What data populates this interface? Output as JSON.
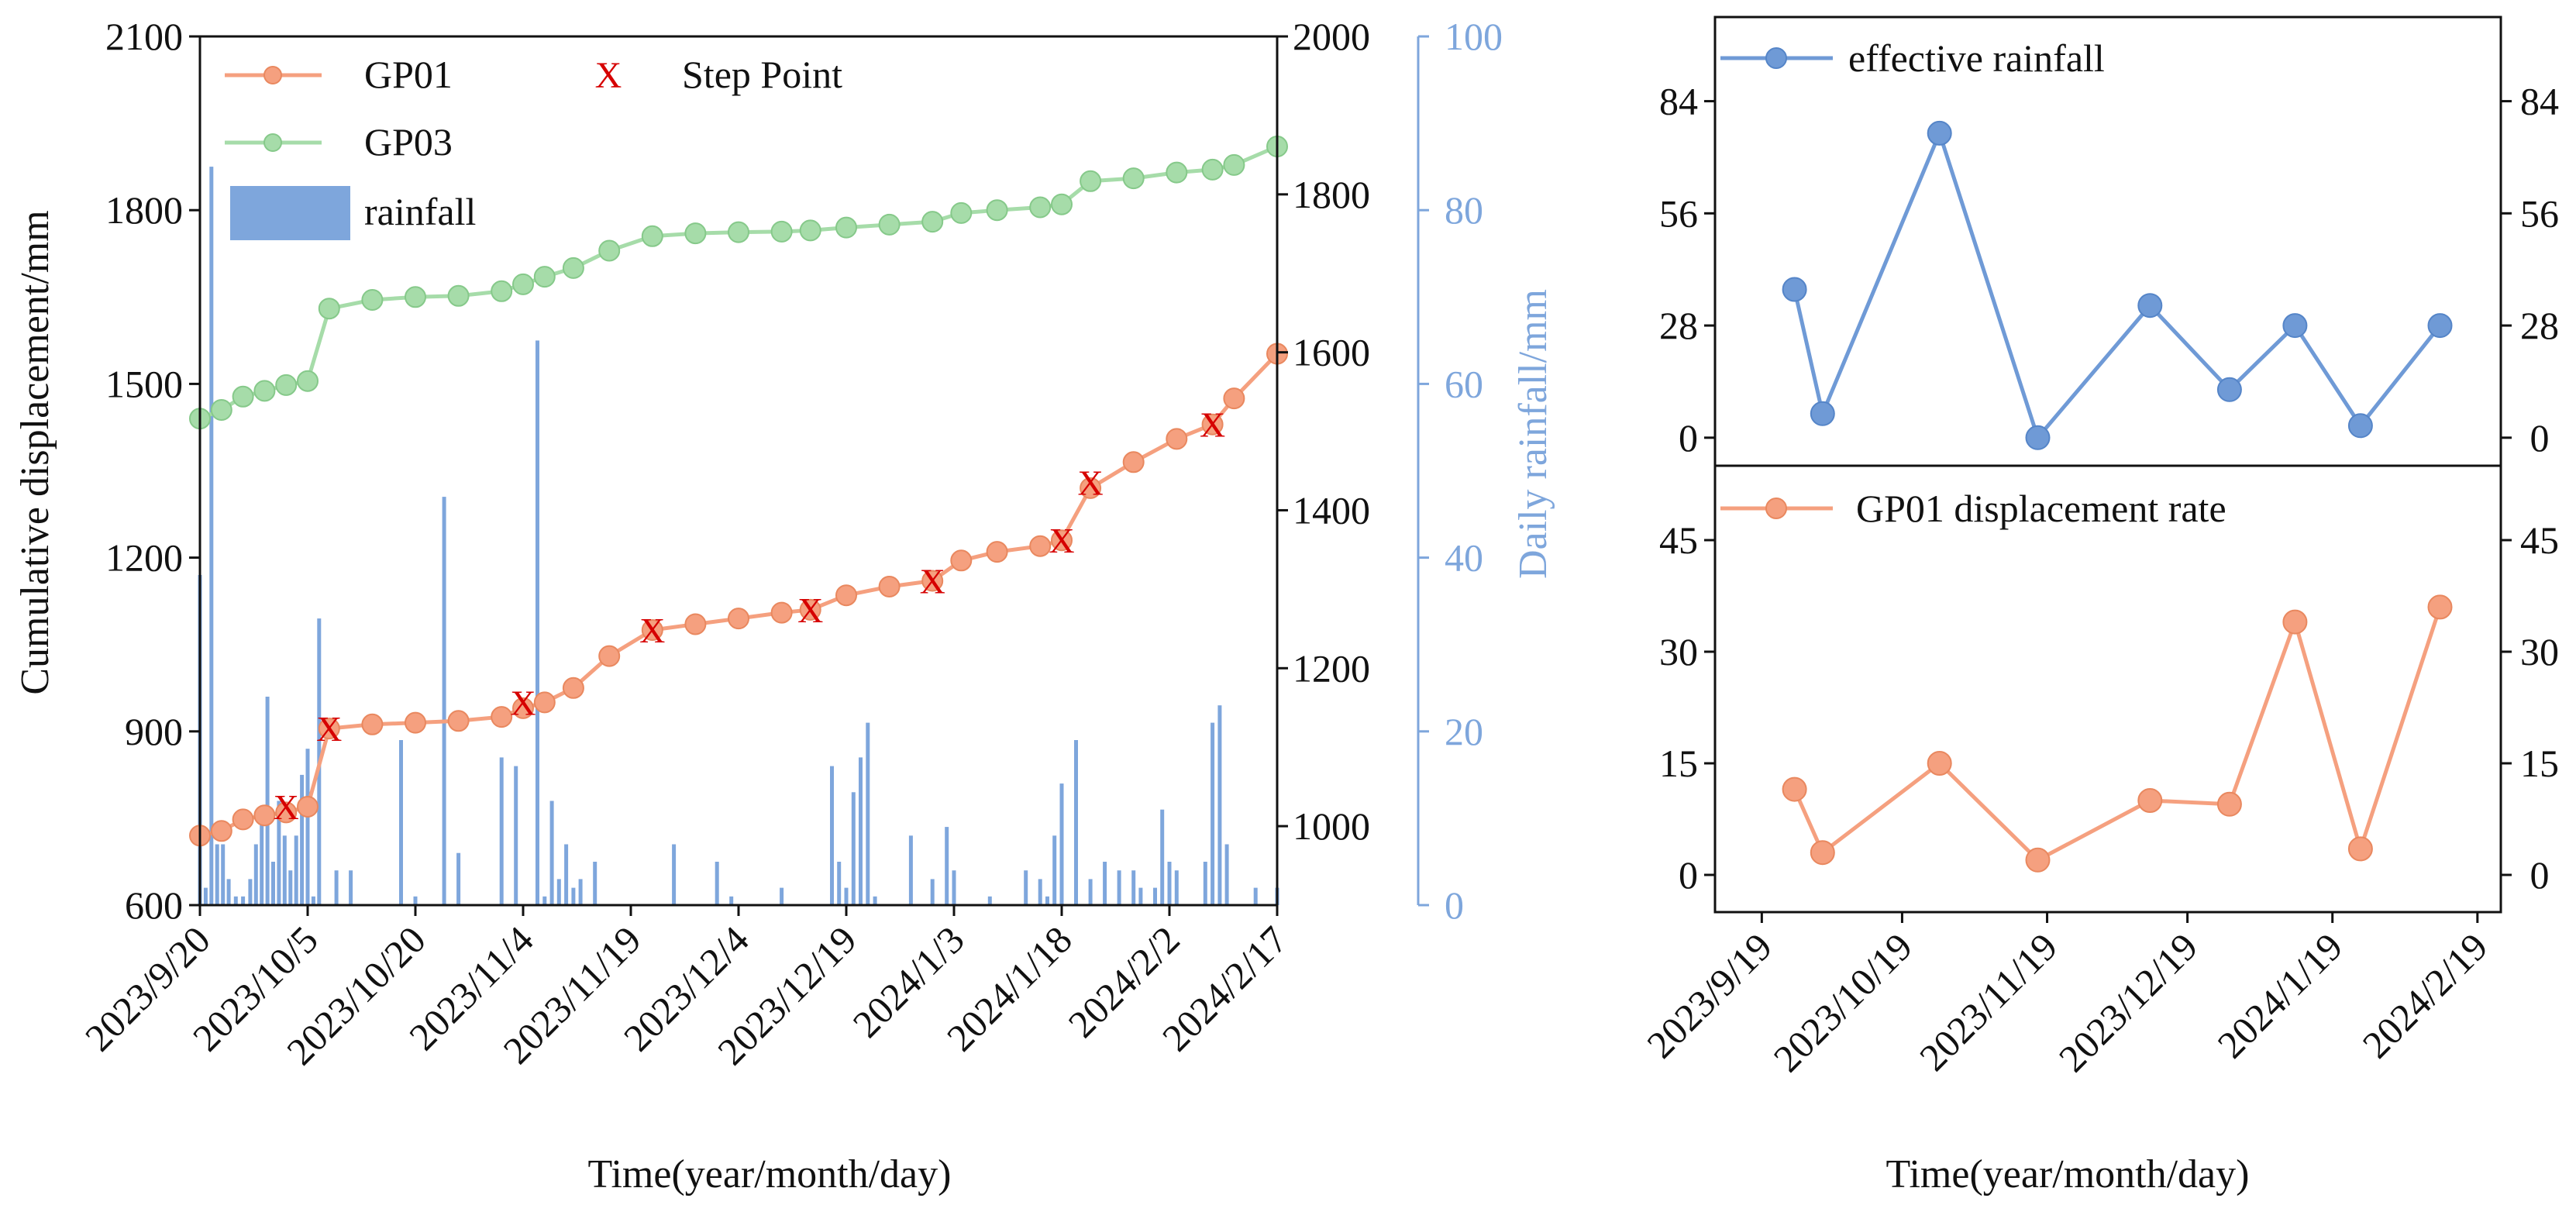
{
  "colors": {
    "gp01": "#f5a07f",
    "gp03": "#a6dca9",
    "rain": "#7ea6dc",
    "rain_axis": "#7ea6dc",
    "rate": "#f5a07f",
    "eff": "#6f9ad6",
    "step": "#d60000"
  },
  "chart_data": [
    {
      "id": "left",
      "type": "line+bar",
      "xlabel": "Time(year/month/day)",
      "ylabel_left": "Cumulative displacement/mm",
      "ylabel_right": "Daily rainfall/mm",
      "x_ticks": [
        "2023/9/20",
        "2023/10/5",
        "2023/10/20",
        "2023/11/4",
        "2023/11/19",
        "2023/12/4",
        "2023/12/19",
        "2024/1/3",
        "2024/1/18",
        "2024/2/2",
        "2024/2/17"
      ],
      "x_range_days": [
        0,
        150
      ],
      "y_left": {
        "lim": [
          600,
          2100
        ],
        "ticks": [
          "600",
          "900",
          "1200",
          "1500",
          "1800",
          "2100"
        ]
      },
      "y_right_disp": {
        "lim": [
          900,
          2000
        ],
        "ticks": [
          "1000",
          "1200",
          "1400",
          "1600",
          "1800",
          "2000"
        ]
      },
      "y_right_rain": {
        "lim": [
          0,
          100
        ],
        "ticks": [
          "0",
          "20",
          "40",
          "60",
          "80",
          "100"
        ]
      },
      "legend": {
        "gp01": "GP01",
        "gp03": "GP03",
        "rainfall": "rainfall",
        "step": "Step Point",
        "step_marker": "X"
      },
      "series": [
        {
          "name": "GP01",
          "x_days": [
            0,
            3,
            6,
            9,
            12,
            15,
            18,
            24,
            30,
            36,
            42,
            45,
            48,
            52,
            57,
            63,
            69,
            75,
            81,
            85,
            90,
            96,
            102,
            106,
            111,
            117,
            120,
            124,
            130,
            136,
            141,
            144,
            150
          ],
          "values": [
            720,
            728,
            748,
            755,
            760,
            770,
            905,
            912,
            915,
            918,
            925,
            940,
            950,
            975,
            1030,
            1075,
            1085,
            1095,
            1105,
            1110,
            1135,
            1150,
            1160,
            1195,
            1210,
            1220,
            1230,
            1320,
            1365,
            1405,
            1430,
            1475,
            1552
          ]
        },
        {
          "name": "GP03",
          "x_days": [
            0,
            3,
            6,
            9,
            12,
            15,
            18,
            24,
            30,
            36,
            42,
            45,
            48,
            52,
            57,
            63,
            69,
            75,
            81,
            85,
            90,
            96,
            102,
            106,
            111,
            117,
            120,
            124,
            130,
            136,
            141,
            144,
            150
          ],
          "values": [
            1440,
            1455,
            1478,
            1488,
            1498,
            1505,
            1630,
            1645,
            1650,
            1652,
            1660,
            1672,
            1685,
            1700,
            1730,
            1755,
            1760,
            1762,
            1763,
            1765,
            1770,
            1775,
            1780,
            1795,
            1800,
            1805,
            1810,
            1850,
            1855,
            1865,
            1870,
            1878,
            1910
          ]
        },
        {
          "name": "rainfall",
          "x_days": [
            0,
            0.8,
            1.6,
            2.4,
            3.2,
            4,
            5,
            6,
            7,
            7.8,
            8.6,
            9.4,
            10.2,
            11,
            11.8,
            12.6,
            13.4,
            14.2,
            15,
            15.8,
            16.6,
            19,
            21,
            28,
            30,
            34,
            36,
            42,
            44,
            47,
            48,
            49,
            50,
            51,
            52,
            53,
            55,
            66,
            72,
            74,
            81,
            88,
            89,
            90,
            91,
            92,
            93,
            94,
            99,
            102,
            104,
            105,
            110,
            115,
            117,
            118,
            119,
            120,
            122,
            124,
            126,
            128,
            130,
            131,
            133,
            134,
            135,
            136,
            140,
            141,
            142,
            143,
            147,
            150
          ],
          "values": [
            38,
            2,
            85,
            7,
            7,
            3,
            1,
            1,
            3,
            7,
            10,
            24,
            5,
            12,
            8,
            4,
            8,
            15,
            18,
            1,
            33,
            4,
            4,
            19,
            1,
            47,
            6,
            17,
            16,
            65,
            1,
            12,
            3,
            7,
            2,
            3,
            5,
            7,
            5,
            1,
            2,
            16,
            5,
            2,
            13,
            17,
            21,
            1,
            8,
            3,
            9,
            4,
            1,
            4,
            3,
            1,
            8,
            14,
            19,
            3,
            5,
            4,
            4,
            2,
            2,
            11,
            5,
            4,
            5,
            21,
            23,
            7,
            2,
            2
          ]
        },
        {
          "name": "Step Point",
          "x_days": [
            12,
            18,
            45,
            63,
            85,
            102,
            120,
            124,
            141
          ],
          "values": [
            770,
            905,
            950,
            1075,
            1110,
            1160,
            1230,
            1330,
            1430
          ]
        }
      ]
    },
    {
      "id": "right-top",
      "type": "line",
      "x_ticks": [
        "2023/9/19",
        "2023/10/19",
        "2023/11/19",
        "2023/12/19",
        "2024/1/19",
        "2024/2/19"
      ],
      "x_range_days": [
        -10,
        158
      ],
      "ylim": [
        -7,
        105
      ],
      "y_ticks": [
        "0",
        "28",
        "56",
        "84"
      ],
      "legend": "effective rainfall",
      "series": [
        {
          "name": "effective rainfall",
          "x_days": [
            7,
            13,
            38,
            59,
            83,
            100,
            114,
            128,
            145
          ],
          "values": [
            37,
            6,
            76,
            0,
            33,
            12,
            28,
            3,
            28
          ]
        }
      ]
    },
    {
      "id": "right-bottom",
      "type": "line",
      "x_ticks": [
        "2023/9/19",
        "2023/10/19",
        "2023/11/19",
        "2023/12/19",
        "2024/1/19",
        "2024/2/19"
      ],
      "x_range_days": [
        -10,
        158
      ],
      "ylim": [
        -5,
        55
      ],
      "y_ticks": [
        "0",
        "15",
        "30",
        "45"
      ],
      "xlabel": "Time(year/month/day)",
      "legend": "GP01 displacement rate",
      "series": [
        {
          "name": "GP01 displacement rate",
          "x_days": [
            7,
            13,
            38,
            59,
            83,
            100,
            114,
            128,
            145
          ],
          "values": [
            11.5,
            3,
            15,
            2,
            10,
            9.5,
            34,
            3.5,
            36
          ]
        }
      ]
    }
  ]
}
